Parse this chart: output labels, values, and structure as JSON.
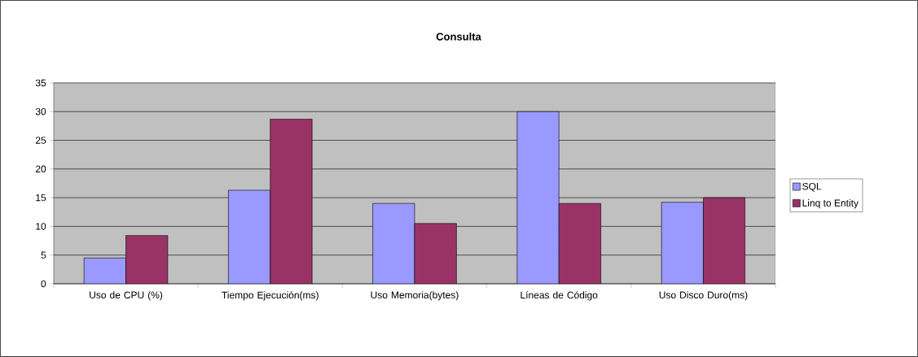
{
  "chart_data": {
    "type": "bar",
    "title": "Consulta",
    "categories": [
      "Uso de CPU (%)",
      "Tiempo Ejecución(ms)",
      "Uso Memoria(bytes)",
      "Líneas de Código",
      "Uso Disco Duro(ms)"
    ],
    "series": [
      {
        "name": "SQL",
        "color": "#9999ff",
        "values": [
          4.5,
          16.3,
          14.0,
          30.0,
          14.2
        ]
      },
      {
        "name": "Linq to Entity",
        "color": "#993366",
        "values": [
          8.4,
          28.7,
          10.5,
          14.0,
          15.0
        ]
      }
    ],
    "ylim": [
      0,
      35
    ],
    "yticks": [
      0,
      5,
      10,
      15,
      20,
      25,
      30,
      35
    ],
    "grid": "y",
    "legend": "right"
  }
}
